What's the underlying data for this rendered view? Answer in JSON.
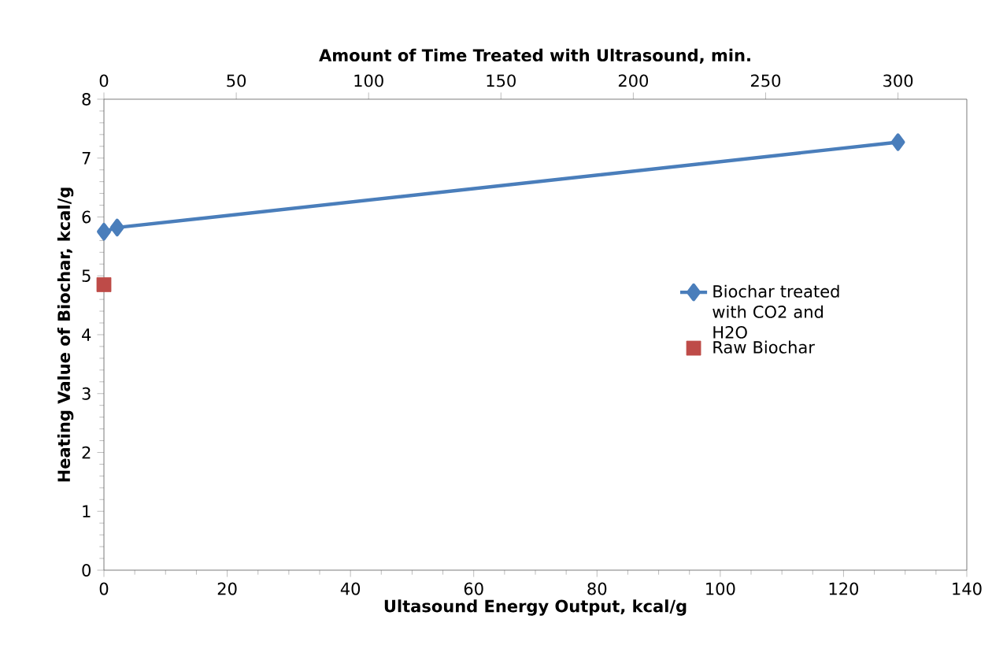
{
  "chart_data": {
    "type": "line",
    "xlabel": "Ultasound  Energy Output, kcal/g",
    "x2label": "Amount of Time Treated with Ultrasound,  min.",
    "ylabel": "Heating Value of Biochar,  kcal/g",
    "xlim": [
      0,
      140
    ],
    "xticks": [
      0,
      20,
      40,
      60,
      80,
      100,
      120,
      140
    ],
    "x2lim": [
      0,
      326
    ],
    "x2ticks": [
      0,
      50,
      100,
      150,
      200,
      250,
      300
    ],
    "ylim": [
      0,
      8
    ],
    "yticks": [
      0,
      1,
      2,
      3,
      4,
      5,
      6,
      7,
      8
    ],
    "grid": false,
    "legend": "right",
    "series": [
      {
        "name": "Biochar treated with CO2 and H2O",
        "axis": "x2",
        "marker": "diamond",
        "line_style": "solid",
        "color": "#4a7ebb",
        "x": [
          0,
          5,
          300
        ],
        "values": [
          5.75,
          5.82,
          7.27
        ]
      },
      {
        "name": "Raw Biochar",
        "type": "scatter",
        "marker": "square",
        "color": "#be4b48",
        "x": [
          0
        ],
        "values": [
          4.85
        ]
      }
    ]
  }
}
